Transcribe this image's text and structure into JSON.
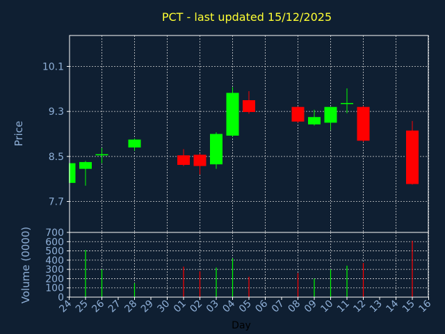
{
  "chart_data": [
    {
      "type": "candlestick",
      "title": "PCT - last updated 15/12/2025",
      "ylabel": "Price",
      "xlabel": "Day",
      "yticks": [
        7.7,
        8.5,
        9.3,
        10.1
      ],
      "ylim": [
        7.15,
        10.65
      ],
      "grid": true,
      "up_color": "#00ff00",
      "down_color": "#ff0000",
      "categories": [
        "24",
        "25",
        "26",
        "27",
        "28",
        "29",
        "30",
        "01",
        "02",
        "03",
        "04",
        "05",
        "06",
        "07",
        "08",
        "09",
        "10",
        "11",
        "12",
        "13",
        "14",
        "15",
        "16"
      ],
      "candles": [
        {
          "x": "24",
          "open": 8.03,
          "close": 8.38,
          "high": 8.38,
          "low": 8.03
        },
        {
          "x": "25",
          "open": 8.28,
          "close": 8.4,
          "high": 8.42,
          "low": 7.98
        },
        {
          "x": "26",
          "open": 8.52,
          "close": 8.54,
          "high": 8.65,
          "low": 8.38
        },
        {
          "x": "28",
          "open": 8.66,
          "close": 8.8,
          "high": 8.82,
          "low": 8.6
        },
        {
          "x": "01",
          "open": 8.52,
          "close": 8.35,
          "high": 8.63,
          "low": 8.33
        },
        {
          "x": "02",
          "open": 8.53,
          "close": 8.33,
          "high": 8.55,
          "low": 8.18
        },
        {
          "x": "03",
          "open": 8.36,
          "close": 8.9,
          "high": 8.93,
          "low": 8.28
        },
        {
          "x": "04",
          "open": 8.87,
          "close": 9.63,
          "high": 9.73,
          "low": 8.85
        },
        {
          "x": "05",
          "open": 9.5,
          "close": 9.29,
          "high": 9.66,
          "low": 9.26
        },
        {
          "x": "08",
          "open": 9.38,
          "close": 9.12,
          "high": 9.39,
          "low": 9.1
        },
        {
          "x": "09",
          "open": 9.07,
          "close": 9.2,
          "high": 9.33,
          "low": 9.05
        },
        {
          "x": "10",
          "open": 9.1,
          "close": 9.38,
          "high": 9.38,
          "low": 8.97
        },
        {
          "x": "11",
          "open": 9.44,
          "close": 9.45,
          "high": 9.71,
          "low": 9.27
        },
        {
          "x": "12",
          "open": 9.38,
          "close": 8.78,
          "high": 9.4,
          "low": 8.76
        },
        {
          "x": "15",
          "open": 8.96,
          "close": 8.01,
          "high": 9.13,
          "low": 8.0
        }
      ]
    },
    {
      "type": "bar",
      "ylabel": "Volume (0000)",
      "xlabel": "Day",
      "yticks": [
        0,
        100,
        200,
        300,
        400,
        500,
        600,
        700
      ],
      "ylim": [
        0,
        700
      ],
      "grid": true,
      "categories": [
        "24",
        "25",
        "26",
        "27",
        "28",
        "29",
        "30",
        "01",
        "02",
        "03",
        "04",
        "05",
        "06",
        "07",
        "08",
        "09",
        "10",
        "11",
        "12",
        "13",
        "14",
        "15",
        "16"
      ],
      "bars": [
        {
          "x": "25",
          "value": 510,
          "direction": "up"
        },
        {
          "x": "26",
          "value": 300,
          "direction": "up"
        },
        {
          "x": "28",
          "value": 150,
          "direction": "up"
        },
        {
          "x": "01",
          "value": 330,
          "direction": "down"
        },
        {
          "x": "02",
          "value": 280,
          "direction": "down"
        },
        {
          "x": "03",
          "value": 320,
          "direction": "up"
        },
        {
          "x": "04",
          "value": 420,
          "direction": "up"
        },
        {
          "x": "05",
          "value": 220,
          "direction": "down"
        },
        {
          "x": "08",
          "value": 260,
          "direction": "down"
        },
        {
          "x": "09",
          "value": 200,
          "direction": "up"
        },
        {
          "x": "10",
          "value": 300,
          "direction": "up"
        },
        {
          "x": "11",
          "value": 340,
          "direction": "up"
        },
        {
          "x": "12",
          "value": 370,
          "direction": "down"
        },
        {
          "x": "15",
          "value": 610,
          "direction": "down"
        }
      ]
    }
  ]
}
